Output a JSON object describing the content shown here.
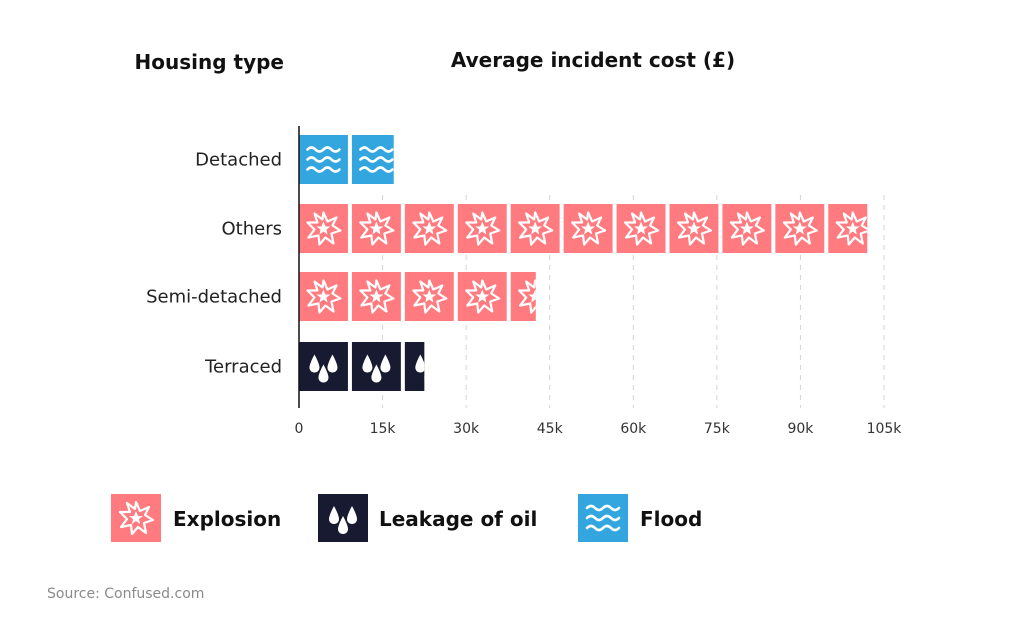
{
  "headers": {
    "category_header": "Housing type",
    "value_header": "Average incident cost (£)"
  },
  "source": "Source: Confused.com",
  "colors": {
    "Explosion": "#ff7b80",
    "Leakage of oil": "#171a30",
    "Flood": "#33a6df"
  },
  "icons": {
    "Explosion": "explosion-icon",
    "Leakage of oil": "oil-drops-icon",
    "Flood": "flood-waves-icon"
  },
  "legend": [
    {
      "label": "Explosion"
    },
    {
      "label": "Leakage of oil"
    },
    {
      "label": "Flood"
    }
  ],
  "chart_data": {
    "type": "bar",
    "orientation": "horizontal",
    "pictogram_unit": 9500,
    "categories": [
      "Detached",
      "Others",
      "Semi-detached",
      "Terraced"
    ],
    "values": [
      17000,
      102000,
      42500,
      22500
    ],
    "incident_type": [
      "Flood",
      "Explosion",
      "Explosion",
      "Leakage of oil"
    ],
    "xlim": [
      0,
      105000
    ],
    "xticks": [
      0,
      15000,
      30000,
      45000,
      60000,
      75000,
      90000,
      105000
    ],
    "xtick_labels": [
      "0",
      "15k",
      "30k",
      "45k",
      "60k",
      "75k",
      "90k",
      "105k"
    ],
    "grid": "vertical dashed",
    "legend_position": "bottom"
  }
}
